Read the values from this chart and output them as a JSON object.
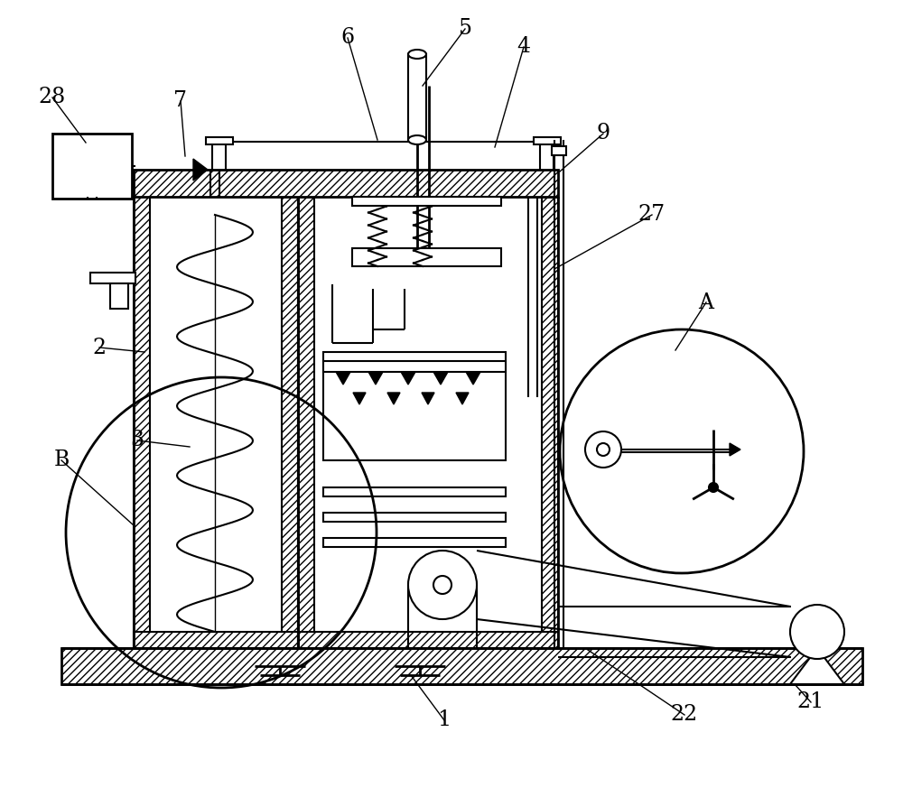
{
  "bg_color": "#ffffff",
  "line_color": "#000000",
  "lw": 1.5,
  "lw_thick": 2.0,
  "lw_thin": 1.0,
  "label_specs": [
    [
      "28",
      58,
      108,
      95,
      158
    ],
    [
      "7",
      200,
      112,
      205,
      173
    ],
    [
      "6",
      385,
      42,
      418,
      155
    ],
    [
      "5",
      515,
      32,
      468,
      95
    ],
    [
      "4",
      580,
      52,
      548,
      163
    ],
    [
      "9",
      668,
      148,
      620,
      190
    ],
    [
      "27",
      722,
      238,
      614,
      298
    ],
    [
      "2",
      110,
      385,
      160,
      390
    ],
    [
      "3",
      152,
      488,
      210,
      495
    ],
    [
      "A",
      782,
      335,
      748,
      388
    ],
    [
      "B",
      68,
      510,
      148,
      582
    ],
    [
      "1",
      492,
      798,
      455,
      748
    ],
    [
      "22",
      758,
      792,
      648,
      718
    ],
    [
      "21",
      898,
      778,
      880,
      758
    ]
  ]
}
